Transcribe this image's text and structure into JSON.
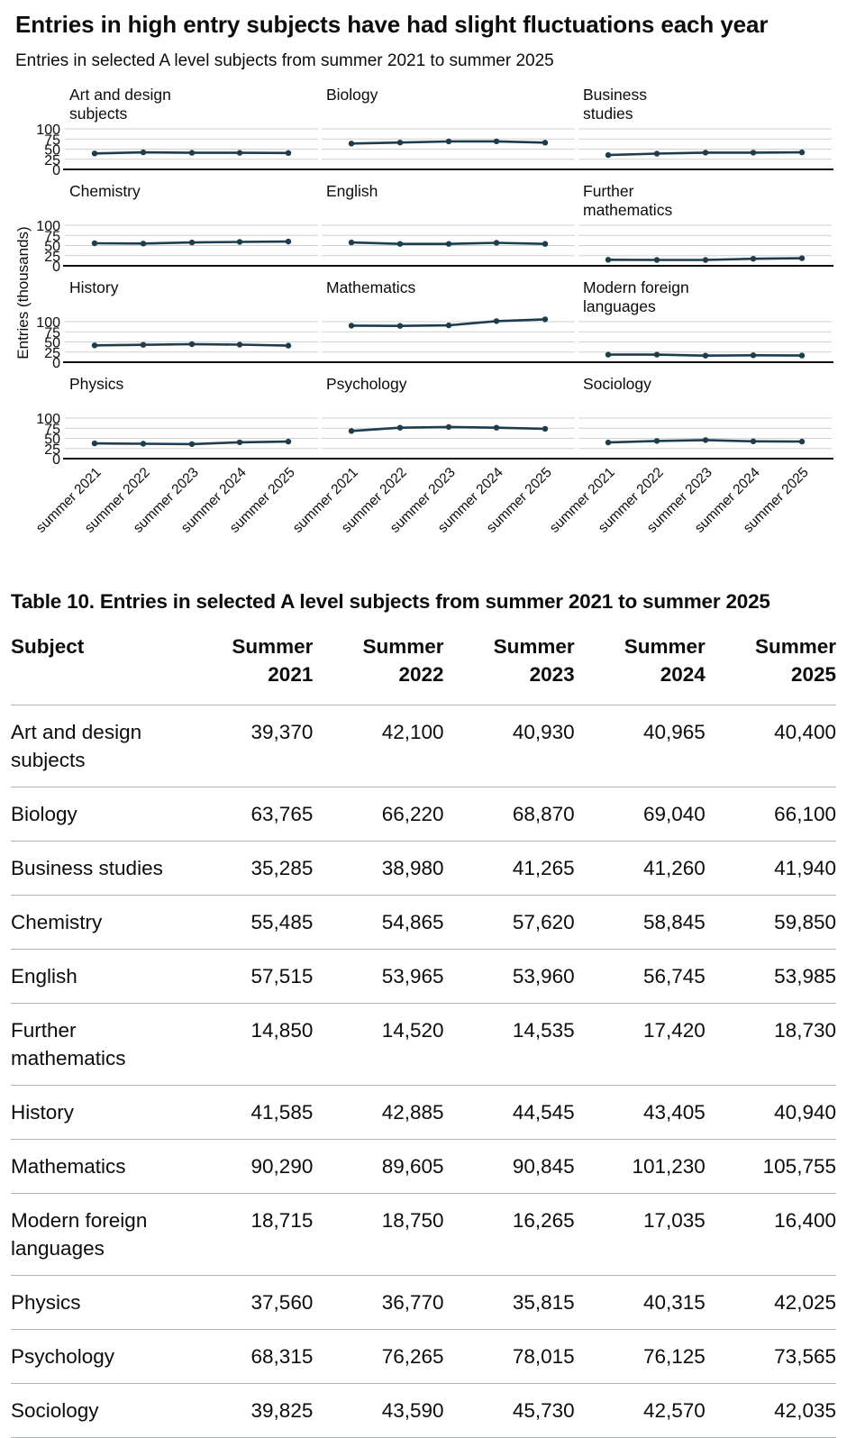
{
  "title": "Entries in high entry subjects have had slight fluctuations each year",
  "subtitle": "Entries in selected A level subjects from summer 2021 to summer 2025",
  "colors": {
    "line": "#1d3d4f",
    "grid": "#d0d0d0",
    "axis": "#0b0c0c",
    "text": "#0b0c0c",
    "rule": "#b1b4b6"
  },
  "chart_data": {
    "type": "line",
    "layout": "small-multiples 4 rows x 3 columns",
    "ylabel": "Entries (thousands)",
    "ylim": [
      0,
      100
    ],
    "yticks": [
      0,
      25,
      50,
      75,
      100
    ],
    "grid": true,
    "x": [
      "summer 2021",
      "summer 2022",
      "summer 2023",
      "summer 2024",
      "summer 2025"
    ],
    "panels": [
      {
        "name": "Art and design subjects",
        "label_lines": [
          "Art and design",
          "subjects"
        ],
        "values": [
          39.37,
          42.1,
          40.93,
          40.965,
          40.4
        ]
      },
      {
        "name": "Biology",
        "label_lines": [
          "Biology"
        ],
        "values": [
          63.765,
          66.22,
          68.87,
          69.04,
          66.1
        ]
      },
      {
        "name": "Business studies",
        "label_lines": [
          "Business",
          "studies"
        ],
        "values": [
          35.285,
          38.98,
          41.265,
          41.26,
          41.94
        ]
      },
      {
        "name": "Chemistry",
        "label_lines": [
          "Chemistry"
        ],
        "values": [
          55.485,
          54.865,
          57.62,
          58.845,
          59.85
        ]
      },
      {
        "name": "English",
        "label_lines": [
          "English"
        ],
        "values": [
          57.515,
          53.965,
          53.96,
          56.745,
          53.985
        ]
      },
      {
        "name": "Further mathematics",
        "label_lines": [
          "Further",
          "mathematics"
        ],
        "values": [
          14.85,
          14.52,
          14.535,
          17.42,
          18.73
        ]
      },
      {
        "name": "History",
        "label_lines": [
          "History"
        ],
        "values": [
          41.585,
          42.885,
          44.545,
          43.405,
          40.94
        ]
      },
      {
        "name": "Mathematics",
        "label_lines": [
          "Mathematics"
        ],
        "values": [
          90.29,
          89.605,
          90.845,
          101.23,
          105.755
        ]
      },
      {
        "name": "Modern foreign languages",
        "label_lines": [
          "Modern foreign",
          "languages"
        ],
        "values": [
          18.715,
          18.75,
          16.265,
          17.035,
          16.4
        ]
      },
      {
        "name": "Physics",
        "label_lines": [
          "Physics"
        ],
        "values": [
          37.56,
          36.77,
          35.815,
          40.315,
          42.025
        ]
      },
      {
        "name": "Psychology",
        "label_lines": [
          "Psychology"
        ],
        "values": [
          68.315,
          76.265,
          78.015,
          76.125,
          73.565
        ]
      },
      {
        "name": "Sociology",
        "label_lines": [
          "Sociology"
        ],
        "values": [
          39.825,
          43.59,
          45.73,
          42.57,
          42.035
        ]
      }
    ]
  },
  "table": {
    "caption": "Table 10. Entries in selected A level subjects from summer 2021 to summer 2025",
    "header_subject": "Subject",
    "columns": [
      {
        "word": "Summer",
        "year": "2021"
      },
      {
        "word": "Summer",
        "year": "2022"
      },
      {
        "word": "Summer",
        "year": "2023"
      },
      {
        "word": "Summer",
        "year": "2024"
      },
      {
        "word": "Summer",
        "year": "2025"
      }
    ],
    "rows": [
      {
        "subject": "Art and design subjects",
        "values": [
          "39,370",
          "42,100",
          "40,930",
          "40,965",
          "40,400"
        ]
      },
      {
        "subject": "Biology",
        "values": [
          "63,765",
          "66,220",
          "68,870",
          "69,040",
          "66,100"
        ]
      },
      {
        "subject": "Business studies",
        "values": [
          "35,285",
          "38,980",
          "41,265",
          "41,260",
          "41,940"
        ]
      },
      {
        "subject": "Chemistry",
        "values": [
          "55,485",
          "54,865",
          "57,620",
          "58,845",
          "59,850"
        ]
      },
      {
        "subject": "English",
        "values": [
          "57,515",
          "53,965",
          "53,960",
          "56,745",
          "53,985"
        ]
      },
      {
        "subject": "Further mathematics",
        "values": [
          "14,850",
          "14,520",
          "14,535",
          "17,420",
          "18,730"
        ]
      },
      {
        "subject": "History",
        "values": [
          "41,585",
          "42,885",
          "44,545",
          "43,405",
          "40,940"
        ]
      },
      {
        "subject": "Mathematics",
        "values": [
          "90,290",
          "89,605",
          "90,845",
          "101,230",
          "105,755"
        ]
      },
      {
        "subject": "Modern foreign languages",
        "values": [
          "18,715",
          "18,750",
          "16,265",
          "17,035",
          "16,400"
        ]
      },
      {
        "subject": "Physics",
        "values": [
          "37,560",
          "36,770",
          "35,815",
          "40,315",
          "42,025"
        ]
      },
      {
        "subject": "Psychology",
        "values": [
          "68,315",
          "76,265",
          "78,015",
          "76,125",
          "73,565"
        ]
      },
      {
        "subject": "Sociology",
        "values": [
          "39,825",
          "43,590",
          "45,730",
          "42,570",
          "42,035"
        ]
      }
    ]
  }
}
